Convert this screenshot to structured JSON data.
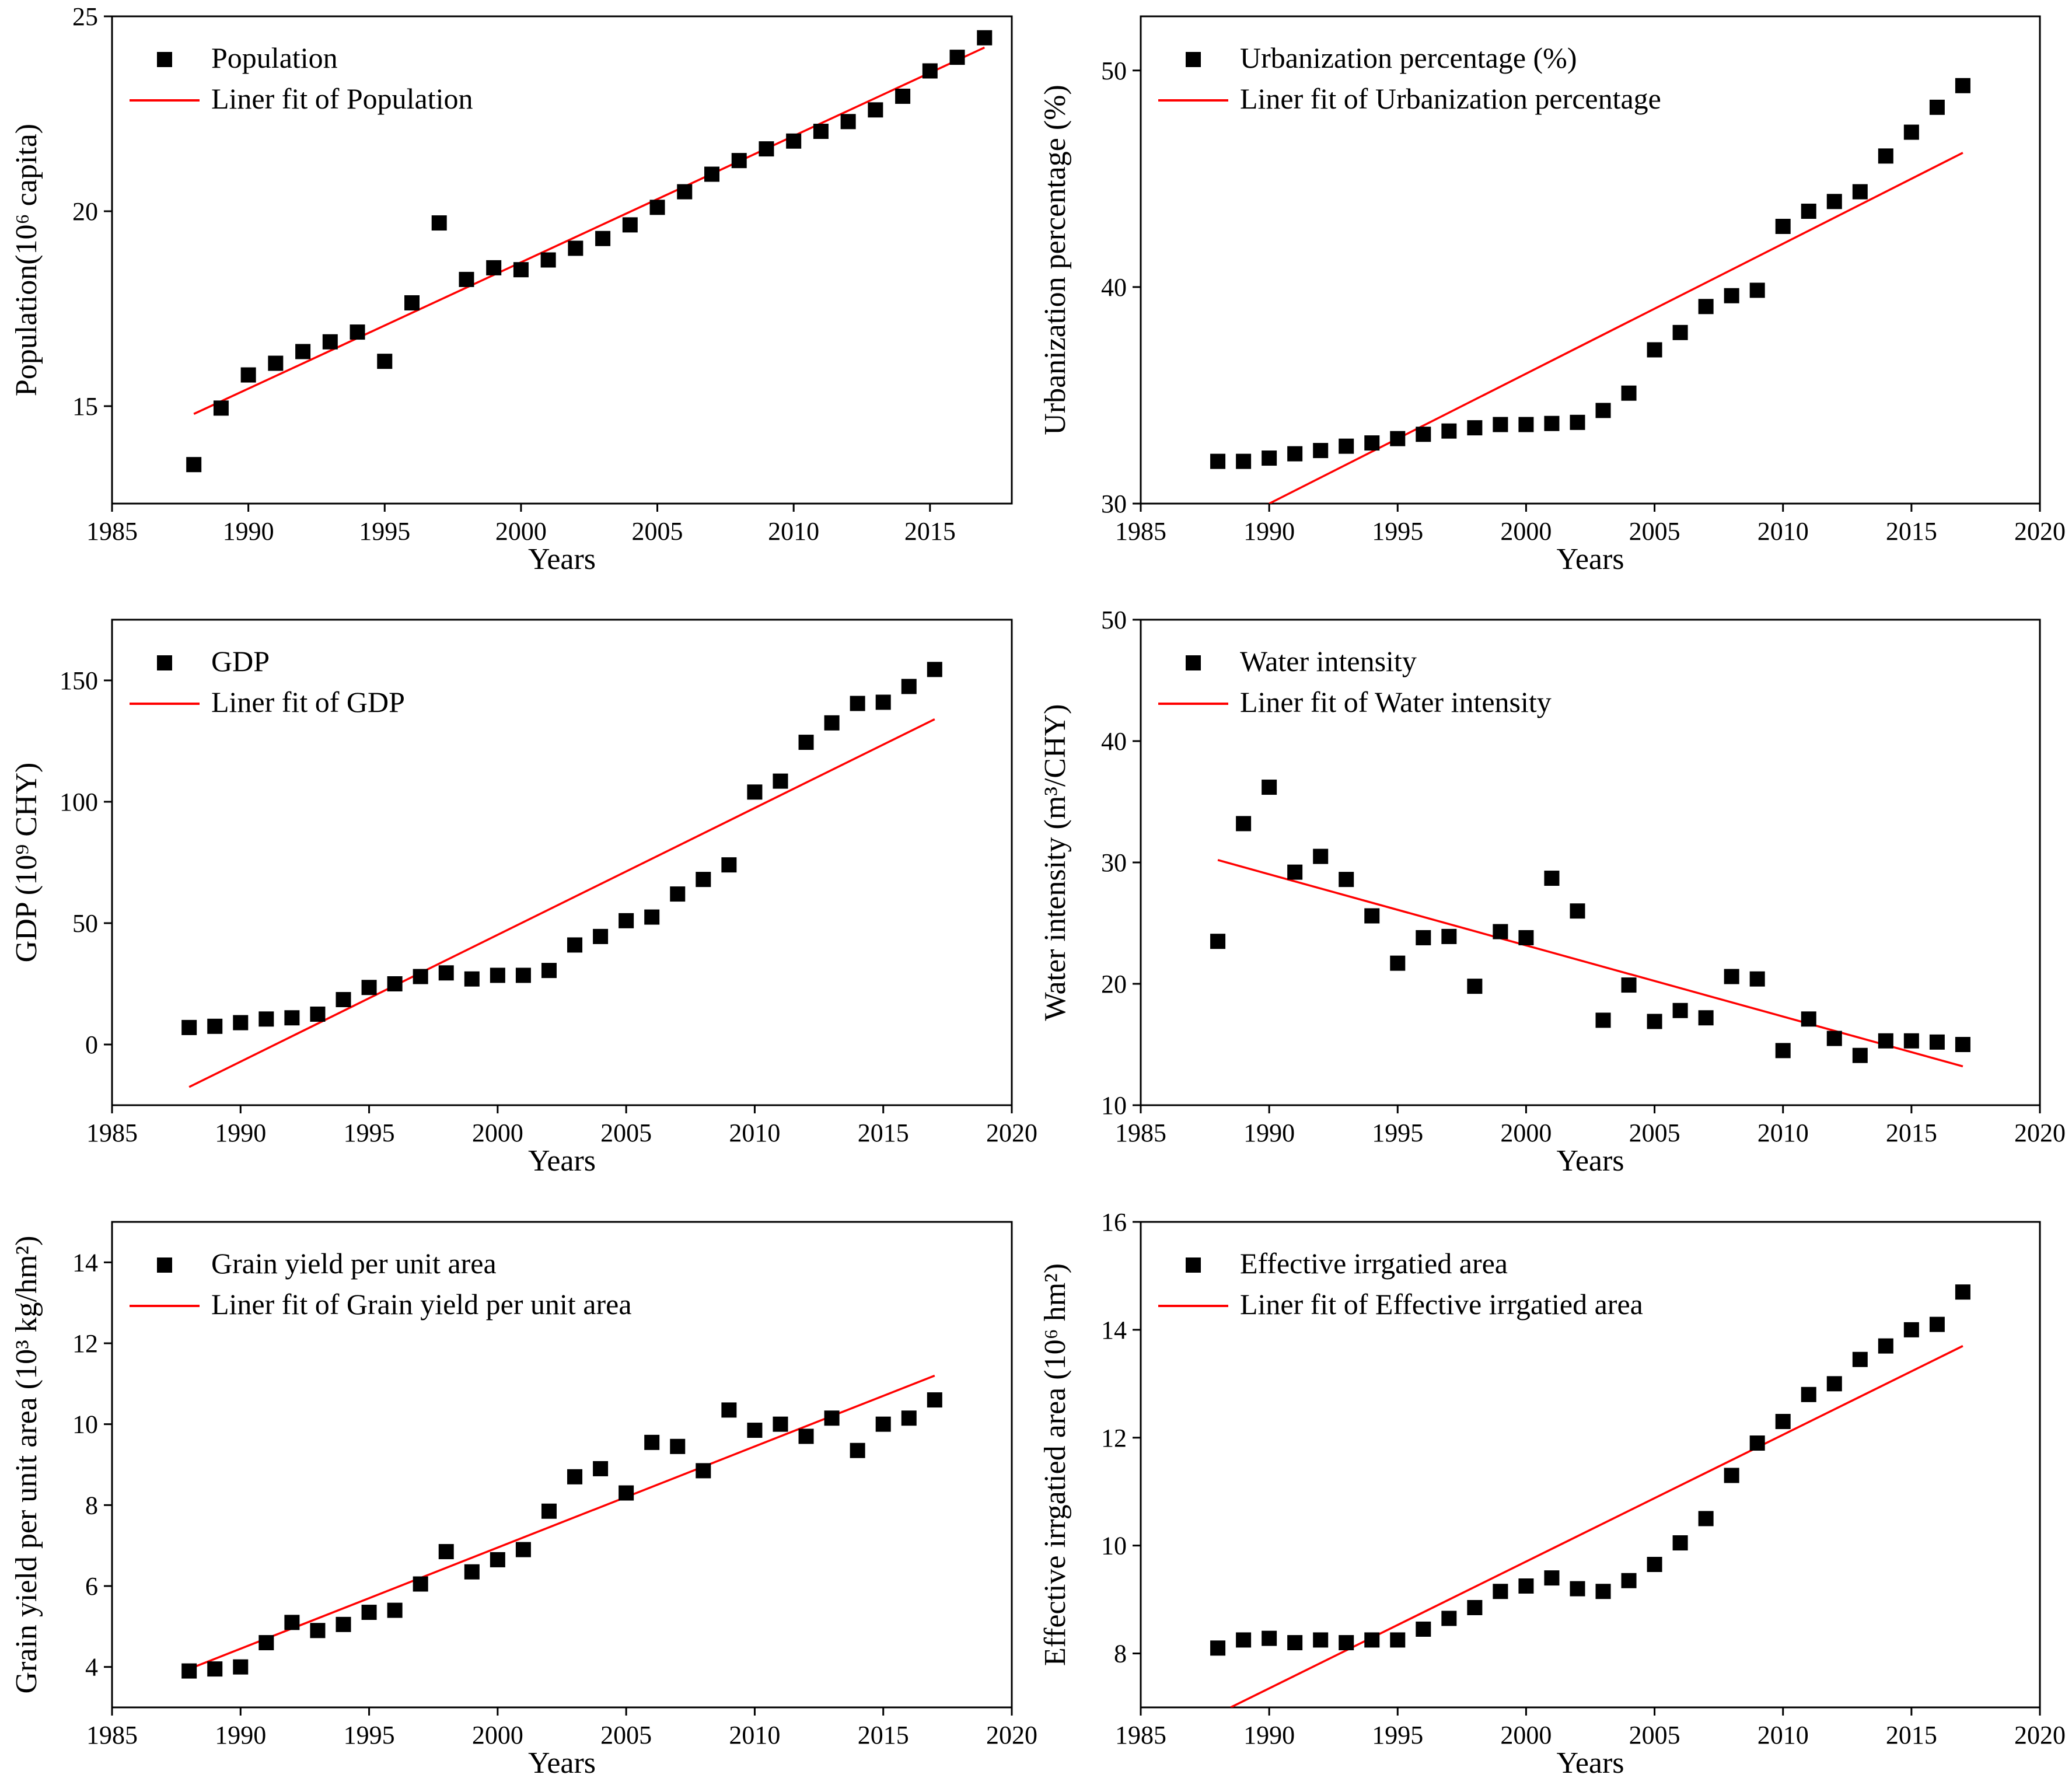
{
  "colors": {
    "marker": "#000000",
    "fit_line": "#ff0000",
    "axis": "#000000",
    "background": "#ffffff"
  },
  "chart_data": [
    {
      "type": "scatter",
      "title": "",
      "xlabel": "Years",
      "ylabel": "Population(10⁶ capita)",
      "xlim": [
        1985,
        2018
      ],
      "ylim": [
        12.5,
        25
      ],
      "xticks": [
        1985,
        1990,
        1995,
        2000,
        2005,
        2010,
        2015
      ],
      "yticks": [
        15,
        20,
        25
      ],
      "legend": [
        "Population",
        "Liner fit of Population"
      ],
      "x": [
        1988,
        1989,
        1990,
        1991,
        1992,
        1993,
        1994,
        1995,
        1996,
        1997,
        1998,
        1999,
        2000,
        2001,
        2002,
        2003,
        2004,
        2005,
        2006,
        2007,
        2008,
        2009,
        2010,
        2011,
        2012,
        2013,
        2014,
        2015,
        2016,
        2017
      ],
      "values": [
        13.5,
        14.95,
        15.8,
        16.1,
        16.4,
        16.65,
        16.9,
        16.15,
        17.65,
        19.7,
        18.25,
        18.55,
        18.5,
        18.75,
        19.05,
        19.3,
        19.65,
        20.1,
        20.5,
        20.95,
        21.3,
        21.6,
        21.8,
        22.05,
        22.3,
        22.6,
        22.95,
        23.6,
        23.95,
        24.45
      ],
      "fit": {
        "x": [
          1988,
          2017
        ],
        "y": [
          14.8,
          24.2
        ]
      }
    },
    {
      "type": "scatter",
      "title": "",
      "xlabel": "Years",
      "ylabel": "Urbanization percentage (%)",
      "xlim": [
        1985,
        2020
      ],
      "ylim": [
        30,
        52.5
      ],
      "xticks": [
        1985,
        1990,
        1995,
        2000,
        2005,
        2010,
        2015,
        2020
      ],
      "yticks": [
        30,
        40,
        50
      ],
      "legend": [
        "Urbanization percentage (%)",
        "Liner fit of Urbanization percentage"
      ],
      "x": [
        1988,
        1989,
        1990,
        1991,
        1992,
        1993,
        1994,
        1995,
        1996,
        1997,
        1998,
        1999,
        2000,
        2001,
        2002,
        2003,
        2004,
        2005,
        2006,
        2007,
        2008,
        2009,
        2010,
        2011,
        2012,
        2013,
        2014,
        2015,
        2016,
        2017
      ],
      "values": [
        31.95,
        31.95,
        32.1,
        32.3,
        32.45,
        32.65,
        32.8,
        33.0,
        33.2,
        33.35,
        33.5,
        33.65,
        33.65,
        33.7,
        33.75,
        34.3,
        35.1,
        37.1,
        37.9,
        39.1,
        39.6,
        39.85,
        42.8,
        43.5,
        43.95,
        44.4,
        46.05,
        47.15,
        48.3,
        49.3
      ],
      "fit": {
        "x": [
          1990,
          2017
        ],
        "y": [
          30.0,
          46.2
        ]
      }
    },
    {
      "type": "scatter",
      "title": "",
      "xlabel": "Years",
      "ylabel": "GDP (10⁹ CHY)",
      "xlim": [
        1985,
        2020
      ],
      "ylim": [
        -25,
        175
      ],
      "xticks": [
        1985,
        1990,
        1995,
        2000,
        2005,
        2010,
        2015,
        2020
      ],
      "yticks": [
        0,
        50,
        100,
        150
      ],
      "legend": [
        "GDP",
        "Liner fit of GDP"
      ],
      "x": [
        1988,
        1989,
        1990,
        1991,
        1992,
        1993,
        1994,
        1995,
        1996,
        1997,
        1998,
        1999,
        2000,
        2001,
        2002,
        2003,
        2004,
        2005,
        2006,
        2007,
        2008,
        2009,
        2010,
        2011,
        2012,
        2013,
        2014,
        2015,
        2016,
        2017
      ],
      "values": [
        7,
        7.5,
        9,
        10.5,
        11,
        12.5,
        18.5,
        23.5,
        25,
        28,
        29.5,
        27,
        28.5,
        28.5,
        30.5,
        41,
        44.5,
        51,
        52.5,
        62,
        68,
        74,
        104,
        108.5,
        124.5,
        132.5,
        140.5,
        141,
        147.5,
        154.5
      ],
      "fit": {
        "x": [
          1988,
          2017
        ],
        "y": [
          -17.5,
          134
        ]
      }
    },
    {
      "type": "scatter",
      "title": "",
      "xlabel": "Years",
      "ylabel": "Water intensity (m³/CHY)",
      "xlim": [
        1985,
        2020
      ],
      "ylim": [
        10,
        50
      ],
      "xticks": [
        1985,
        1990,
        1995,
        2000,
        2005,
        2010,
        2015,
        2020
      ],
      "yticks": [
        10,
        20,
        30,
        40,
        50
      ],
      "legend": [
        "Water intensity",
        "Liner fit of Water intensity"
      ],
      "x": [
        1988,
        1989,
        1990,
        1991,
        1992,
        1993,
        1994,
        1995,
        1996,
        1997,
        1998,
        1999,
        2000,
        2001,
        2002,
        2003,
        2004,
        2005,
        2006,
        2007,
        2008,
        2009,
        2010,
        2011,
        2012,
        2013,
        2014,
        2015,
        2016,
        2017
      ],
      "values": [
        23.5,
        33.2,
        36.2,
        29.2,
        30.5,
        28.6,
        25.6,
        21.7,
        23.8,
        23.9,
        19.8,
        24.3,
        23.8,
        28.7,
        26,
        17,
        19.9,
        16.9,
        17.8,
        17.2,
        20.6,
        20.4,
        14.5,
        17.1,
        15.5,
        14.1,
        15.3,
        15.3,
        15.2,
        15.0
      ],
      "fit": {
        "x": [
          1988,
          2017
        ],
        "y": [
          30.2,
          13.2
        ]
      }
    },
    {
      "type": "scatter",
      "title": "",
      "xlabel": "Years",
      "ylabel": "Grain yield per unit area (10³ kg/hm²)",
      "xlim": [
        1985,
        2020
      ],
      "ylim": [
        3,
        15
      ],
      "xticks": [
        1985,
        1990,
        1995,
        2000,
        2005,
        2010,
        2015,
        2020
      ],
      "yticks": [
        4,
        6,
        8,
        10,
        12,
        14
      ],
      "legend": [
        "Grain yield per unit area",
        "Liner fit of Grain yield per unit area"
      ],
      "x": [
        1988,
        1989,
        1990,
        1991,
        1992,
        1993,
        1994,
        1995,
        1996,
        1997,
        1998,
        1999,
        2000,
        2001,
        2002,
        2003,
        2004,
        2005,
        2006,
        2007,
        2008,
        2009,
        2010,
        2011,
        2012,
        2013,
        2014,
        2015,
        2016,
        2017
      ],
      "values": [
        3.9,
        3.95,
        4.0,
        4.6,
        5.1,
        4.9,
        5.05,
        5.35,
        5.4,
        6.05,
        6.85,
        6.35,
        6.65,
        6.9,
        7.85,
        8.7,
        8.9,
        8.3,
        9.55,
        9.45,
        8.85,
        10.35,
        9.85,
        10.0,
        9.7,
        10.15,
        9.35,
        10.0,
        10.15,
        10.6
      ],
      "fit": {
        "x": [
          1988,
          2017
        ],
        "y": [
          3.95,
          11.2
        ]
      }
    },
    {
      "type": "scatter",
      "title": "",
      "xlabel": "Years",
      "ylabel": "Effective irrgatied area (10⁶ hm²)",
      "xlim": [
        1985,
        2020
      ],
      "ylim": [
        7,
        16
      ],
      "xticks": [
        1985,
        1990,
        1995,
        2000,
        2005,
        2010,
        2015,
        2020
      ],
      "yticks": [
        8,
        10,
        12,
        14,
        16
      ],
      "legend": [
        "Effective irrgatied area",
        "Liner fit of Effective irrgatied area"
      ],
      "x": [
        1988,
        1989,
        1990,
        1991,
        1992,
        1993,
        1994,
        1995,
        1996,
        1997,
        1998,
        1999,
        2000,
        2001,
        2002,
        2003,
        2004,
        2005,
        2006,
        2007,
        2008,
        2009,
        2010,
        2011,
        2012,
        2013,
        2014,
        2015,
        2016,
        2017
      ],
      "values": [
        8.1,
        8.25,
        8.28,
        8.2,
        8.25,
        8.2,
        8.25,
        8.25,
        8.45,
        8.65,
        8.85,
        9.15,
        9.25,
        9.4,
        9.2,
        9.15,
        9.35,
        9.65,
        10.05,
        10.5,
        11.3,
        11.9,
        12.3,
        12.8,
        13.0,
        13.45,
        13.7,
        14.0,
        14.1,
        14.7
      ],
      "fit": {
        "x": [
          1988.5,
          2017
        ],
        "y": [
          7.0,
          13.7
        ]
      }
    }
  ]
}
